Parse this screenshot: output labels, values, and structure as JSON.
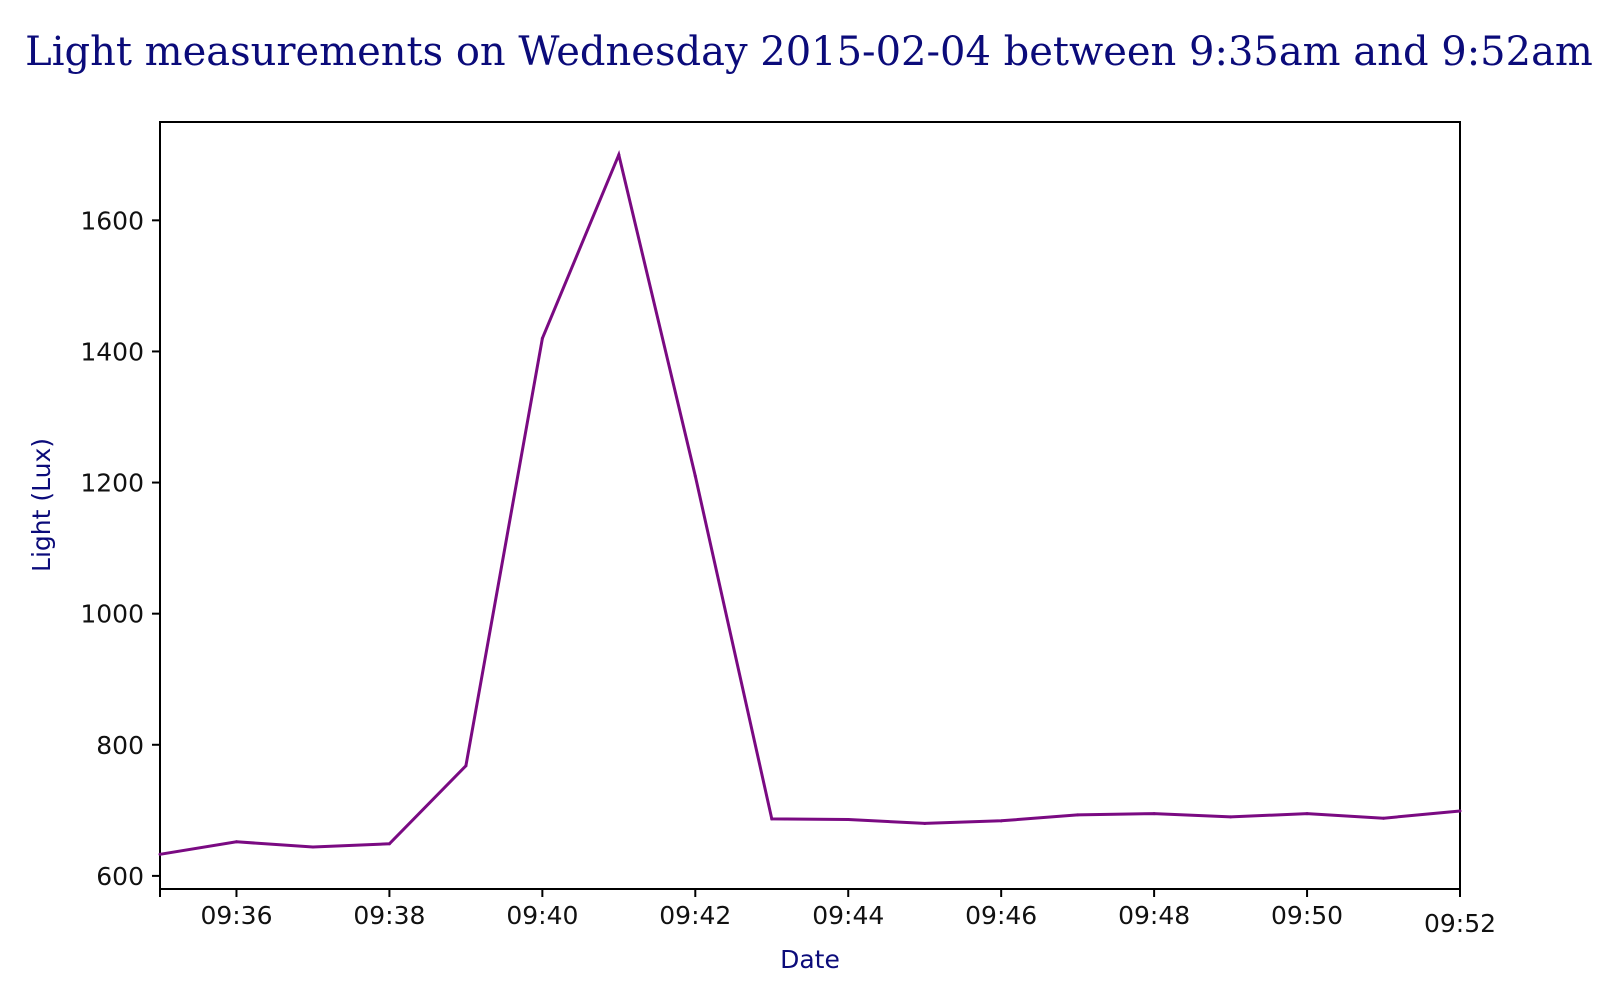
{
  "chart_data": {
    "type": "line",
    "title": "Light measurements on Wednesday 2015-02-04 between 9:35am and 9:52am",
    "xlabel": "Date",
    "ylabel": "Light (Lux)",
    "xlim": [
      "09:35",
      "09:52"
    ],
    "ylim": [
      580,
      1750
    ],
    "x_ticks": [
      "09:36",
      "09:38",
      "09:40",
      "09:42",
      "09:44",
      "09:46",
      "09:48",
      "09:50",
      "09:52"
    ],
    "y_ticks": [
      600,
      800,
      1000,
      1200,
      1400,
      1600
    ],
    "grid": false,
    "series": [
      {
        "color": "#7a0a82",
        "x": [
          "09:35",
          "09:36",
          "09:37",
          "09:38",
          "09:39",
          "09:40",
          "09:41",
          "09:42",
          "09:43",
          "09:44",
          "09:45",
          "09:46",
          "09:47",
          "09:48",
          "09:49",
          "09:50",
          "09:51",
          "09:52"
        ],
        "y": [
          633,
          652,
          644,
          649,
          768,
          1420,
          1700,
          1210,
          687,
          686,
          680,
          684,
          693,
          695,
          690,
          695,
          688,
          699
        ]
      }
    ]
  }
}
